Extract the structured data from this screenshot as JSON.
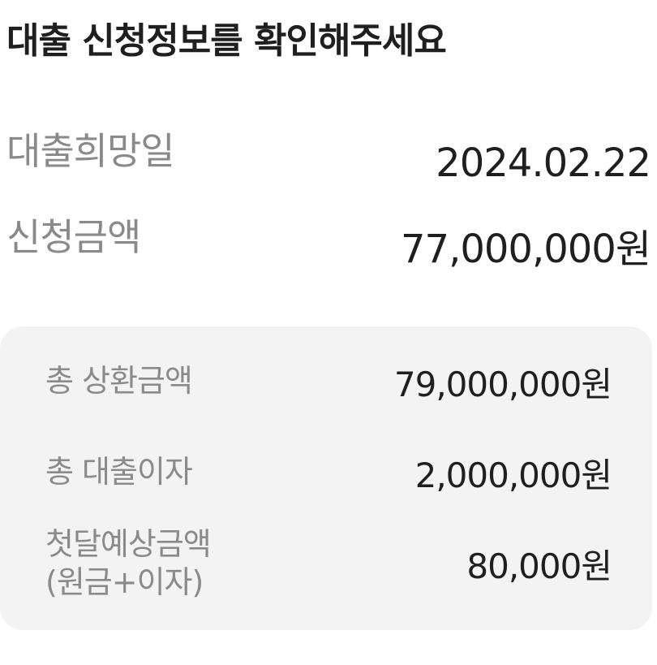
{
  "header": {
    "title": "대출 신청정보를 확인해주세요"
  },
  "loan": {
    "desired_date_label": "대출희망일",
    "desired_date_value": "2024.02.22",
    "requested_amount_label": "신청금액",
    "requested_amount_value": "77,000,000원"
  },
  "summary": {
    "total_repayment_label": "총 상환금액",
    "total_repayment_value": "79,000,000원",
    "total_interest_label": "총 대출이자",
    "total_interest_value": "2,000,000원",
    "first_month_label_line1": "첫달예상금액",
    "first_month_label_line2": "(원금+이자)",
    "first_month_value": "80,000원"
  },
  "colors": {
    "text_primary": "#1f1f1f",
    "text_secondary": "#8a8a8a",
    "summary_background": "#f3f3f3"
  }
}
